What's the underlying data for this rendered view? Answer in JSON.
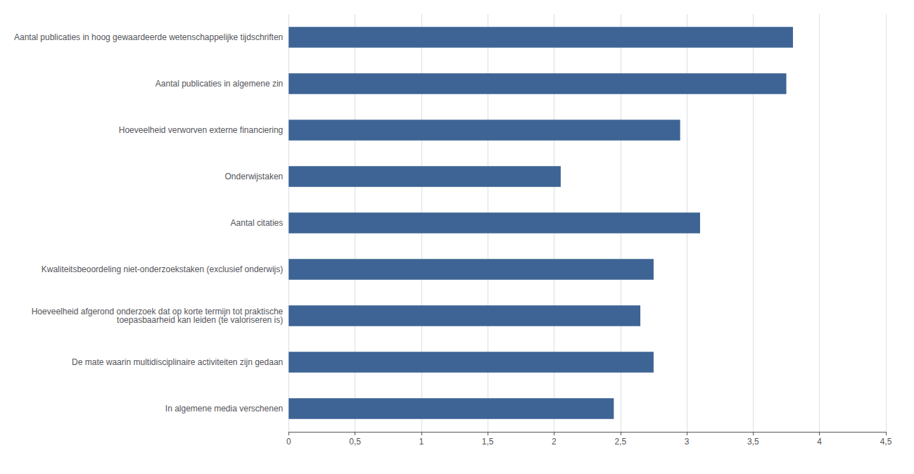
{
  "chart_data": {
    "type": "bar",
    "orientation": "horizontal",
    "categories": [
      "In algemene media verschenen",
      "De mate waarin multidisciplinaire activiteiten zijn gedaan",
      "Hoeveelheid afgerond onderzoek dat op korte termijn tot praktische\ntoepasbaarheid kan leiden (te valoriseren is)",
      "Kwaliteitsbeoordeling niet-onderzoekstaken (exclusief onderwijs)",
      "Aantal citaties",
      "Onderwijstaken",
      "Hoeveelheid verworven externe financiering",
      "Aantal publicaties in algemene zin",
      "Aantal publicaties in hoog gewaardeerde wetenschappelijke tijdschriften"
    ],
    "values": [
      2.45,
      2.75,
      2.65,
      2.75,
      3.1,
      2.05,
      2.95,
      3.75,
      3.8
    ],
    "color": "#3D6494",
    "xlim": [
      0,
      4.5
    ],
    "xticks": [
      0,
      {
        "value": 0.5,
        "label": "0,5"
      },
      1,
      {
        "value": 1.5,
        "label": "1,5"
      },
      2,
      {
        "value": 2.5,
        "label": "2,5"
      },
      3,
      {
        "value": 3.5,
        "label": "3,5"
      },
      4,
      {
        "value": 4.5,
        "label": "4,5"
      }
    ],
    "grid": true
  }
}
